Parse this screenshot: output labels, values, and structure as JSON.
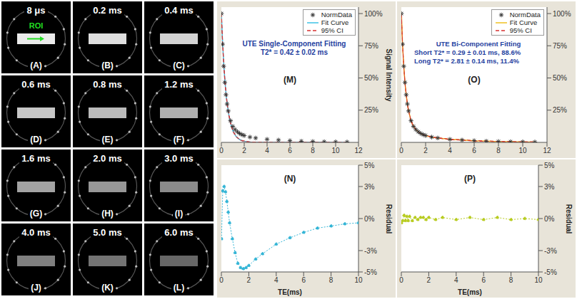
{
  "image_panels": [
    {
      "time": "8 μs",
      "label": "(A)"
    },
    {
      "time": "0.2 ms",
      "label": "(B)"
    },
    {
      "time": "0.4 ms",
      "label": "(C)"
    },
    {
      "time": "0.6 ms",
      "label": "(D)"
    },
    {
      "time": "0.8 ms",
      "label": "(E)"
    },
    {
      "time": "1.2 ms",
      "label": "(F)"
    },
    {
      "time": "1.6 ms",
      "label": "(G)"
    },
    {
      "time": "2.0 ms",
      "label": "(H)"
    },
    {
      "time": "3.0 ms",
      "label": "(I)"
    },
    {
      "time": "4.0 ms",
      "label": "(J)"
    },
    {
      "time": "5.0 ms",
      "label": "(K)"
    },
    {
      "time": "6.0 ms",
      "label": "(L)"
    }
  ],
  "roi_label": "ROI",
  "chart_data": [
    {
      "type": "line",
      "panel": "(M)",
      "annotations": [
        "UTE Single-Component Fitting",
        "T2* = 0.42 ± 0.02 ms"
      ],
      "x": [
        0.008,
        0.1,
        0.2,
        0.3,
        0.4,
        0.5,
        0.6,
        0.8,
        1,
        1.2,
        1.4,
        1.6,
        1.8,
        2,
        2.5,
        3,
        4,
        5,
        6,
        7,
        8,
        9,
        10,
        11
      ],
      "xlim": [
        0,
        12
      ],
      "xticks": [
        0,
        2,
        4,
        6,
        8,
        10,
        12
      ],
      "ylim": [
        0,
        105
      ],
      "yticks": [
        {
          "value": 25,
          "label": "25%"
        },
        {
          "value": 50,
          "label": "50%"
        },
        {
          "value": 75,
          "label": "75%"
        },
        {
          "value": 100,
          "label": "100%"
        }
      ],
      "ylabel": "Signal Intensity",
      "legend": "top-right",
      "series": [
        {
          "name": "NormData",
          "type": "scatter",
          "marker": "star",
          "color": "#333333",
          "values": [
            100,
            76.2,
            59.1,
            46.5,
            37,
            29.8,
            24.4,
            16.8,
            12.4,
            9.9,
            8.2,
            6.9,
            6,
            5.3,
            4.1,
            3.4,
            2.4,
            1.8,
            1.3,
            0.9,
            0.7,
            0.5,
            0.4,
            0.3
          ]
        },
        {
          "name": "Fit Curve",
          "type": "line",
          "color": "#3cc3e6",
          "values": [
            98.1,
            78.8,
            62.1,
            49,
            38.6,
            30.4,
            24,
            14.9,
            9.2,
            5.7,
            3.6,
            2.2,
            1.4,
            0.9,
            0.3,
            0.1,
            0,
            0,
            0,
            0,
            0,
            0,
            0,
            0
          ]
        },
        {
          "name": "95% CI",
          "type": "line",
          "line_style": "dashed",
          "color": "#d83030",
          "lower": [
            96.2,
            76.9,
            60.4,
            47.5,
            37.3,
            29.3,
            23.1,
            14.2,
            8.7,
            5.3,
            3.3,
            2,
            1.2,
            0.7,
            0.2,
            0,
            0,
            0,
            0,
            0,
            0,
            0,
            0,
            0
          ],
          "upper": [
            100,
            80.7,
            63.8,
            50.5,
            39.9,
            31.5,
            24.9,
            15.6,
            9.7,
            6.1,
            3.9,
            2.4,
            1.6,
            1.1,
            0.4,
            0.2,
            0.1,
            0,
            0,
            0,
            0,
            0,
            0,
            0
          ]
        }
      ]
    },
    {
      "type": "line",
      "panel": "(N)",
      "x": [
        0.008,
        0.1,
        0.2,
        0.3,
        0.4,
        0.5,
        0.6,
        0.8,
        1,
        1.2,
        1.4,
        1.6,
        1.8,
        2,
        2.5,
        3,
        4,
        5,
        6,
        7,
        8,
        9,
        10
      ],
      "xlim": [
        0,
        10
      ],
      "xticks": [
        0,
        2,
        4,
        6,
        8,
        10
      ],
      "ylim": [
        -5,
        5
      ],
      "yticks": [
        {
          "value": -5,
          "label": "-5%"
        },
        {
          "value": -3,
          "label": "-3%"
        },
        {
          "value": 0,
          "label": "0%"
        },
        {
          "value": 3,
          "label": "3%"
        },
        {
          "value": 5,
          "label": "5%"
        }
      ],
      "xlabel": "TE(ms)",
      "ylabel": "Residual",
      "series": [
        {
          "type": "line",
          "color": "#33b5d6",
          "marker": "circle",
          "line_style": "dotted",
          "values": [
            -1.9,
            2.6,
            3,
            2.5,
            1.6,
            0.6,
            -0.4,
            -1.9,
            -3.2,
            -4.2,
            -4.6,
            -4.7,
            -4.6,
            -4.4,
            -3.8,
            -3.3,
            -2.4,
            -1.8,
            -1.3,
            -0.9,
            -0.7,
            -0.5,
            -0.4
          ]
        }
      ]
    },
    {
      "type": "line",
      "panel": "(O)",
      "annotations": [
        "UTE Bi-Component Fitting",
        "Short T2* = 0.29 ± 0.01 ms,  88.6%",
        "Long T2* = 2.81 ± 0.14 ms,  11.4%"
      ],
      "x": [
        0.008,
        0.1,
        0.2,
        0.3,
        0.4,
        0.5,
        0.6,
        0.8,
        1,
        1.2,
        1.4,
        1.6,
        1.8,
        2,
        2.5,
        3,
        4,
        5,
        6,
        7,
        8,
        9,
        10,
        11
      ],
      "xlim": [
        0,
        12
      ],
      "xticks": [
        0,
        2,
        4,
        6,
        8,
        10,
        12
      ],
      "ylim": [
        0,
        105
      ],
      "yticks": [
        {
          "value": 25,
          "label": "25%"
        },
        {
          "value": 50,
          "label": "50%"
        },
        {
          "value": 75,
          "label": "75%"
        },
        {
          "value": 100,
          "label": "100%"
        }
      ],
      "legend": "top-right",
      "series": [
        {
          "name": "NormData",
          "type": "scatter",
          "marker": "star",
          "color": "#333333",
          "values": [
            100,
            76.2,
            59.1,
            46.5,
            37,
            29.8,
            24.4,
            16.8,
            12.4,
            9.9,
            8.2,
            6.9,
            6,
            5.3,
            4.1,
            3.4,
            2.4,
            1.8,
            1.3,
            0.9,
            0.7,
            0.5,
            0.4,
            0.3
          ]
        },
        {
          "name": "Fit Curve",
          "type": "line",
          "color": "#f0c020",
          "values": [
            99.6,
            76,
            59.4,
            46.3,
            37.2,
            29.6,
            24.6,
            16.6,
            12.5,
            9.8,
            8.3,
            7,
            5.9,
            5.4,
            4,
            3.5,
            2.3,
            1.9,
            1.2,
            1,
            0.6,
            0.5,
            0.3,
            0.3
          ]
        },
        {
          "name": "95% CI",
          "type": "line",
          "line_style": "dashed",
          "color": "#d83030",
          "lower": [
            98.6,
            75.2,
            58.7,
            45.7,
            36.7,
            29.2,
            24.2,
            16.3,
            12.2,
            9.6,
            8.1,
            6.8,
            5.7,
            5.2,
            3.8,
            3.3,
            2.1,
            1.7,
            1,
            0.8,
            0.4,
            0.3,
            0.1,
            0.1
          ],
          "upper": [
            100,
            76.8,
            60.1,
            46.9,
            37.7,
            30,
            25,
            16.9,
            12.8,
            10,
            8.5,
            7.2,
            6.1,
            5.6,
            4.2,
            3.7,
            2.5,
            2.1,
            1.4,
            1.2,
            0.8,
            0.7,
            0.5,
            0.5
          ]
        }
      ]
    },
    {
      "type": "line",
      "panel": "(P)",
      "x": [
        0.008,
        0.1,
        0.2,
        0.3,
        0.4,
        0.5,
        0.6,
        0.8,
        1,
        1.2,
        1.4,
        1.6,
        1.8,
        2,
        2.5,
        3,
        4,
        5,
        6,
        7,
        8,
        9,
        10
      ],
      "xlim": [
        0,
        10
      ],
      "xticks": [
        0,
        2,
        4,
        6,
        8,
        10
      ],
      "ylim": [
        -5,
        5
      ],
      "yticks": [
        {
          "value": -5,
          "label": "-5%"
        },
        {
          "value": -3,
          "label": "-3%"
        },
        {
          "value": 0,
          "label": "0%"
        },
        {
          "value": 3,
          "label": "3%"
        },
        {
          "value": 5,
          "label": "5%"
        }
      ],
      "xlabel": "TE(ms)",
      "ylabel": "Residual",
      "series": [
        {
          "type": "line",
          "color": "#b8cc20",
          "marker": "circle",
          "line_style": "dotted",
          "values": [
            -0.4,
            -0.2,
            0.3,
            -0.2,
            0.2,
            -0.2,
            0.2,
            -0.2,
            0.1,
            -0.1,
            0.1,
            0.1,
            -0.1,
            0.1,
            -0.1,
            0.1,
            -0.1,
            0.1,
            -0.1,
            0.1,
            -0.1,
            0,
            -0.1
          ]
        }
      ]
    }
  ]
}
